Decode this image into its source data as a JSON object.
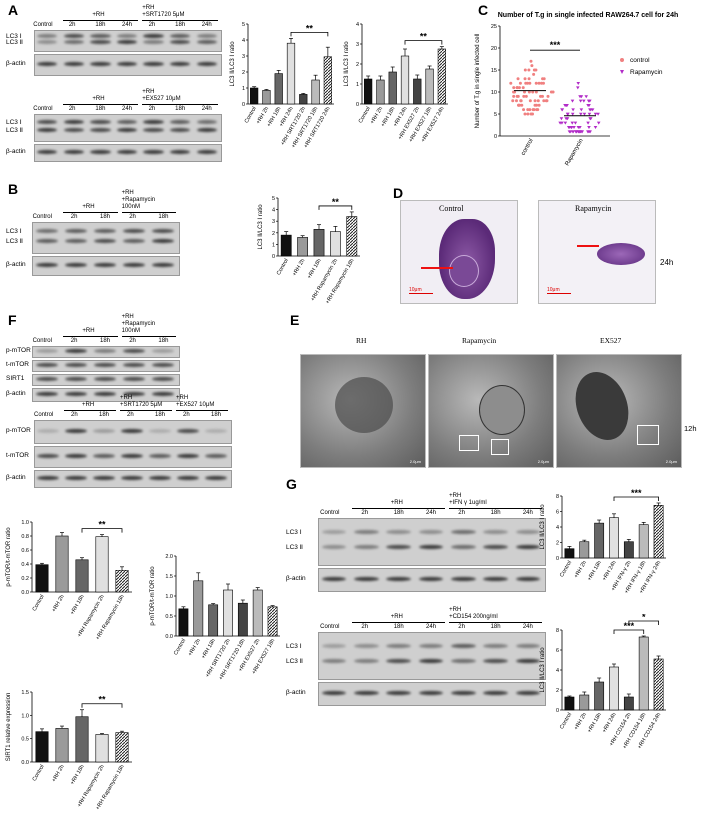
{
  "panels": [
    "A",
    "B",
    "C",
    "D",
    "E",
    "F",
    "G"
  ],
  "blots": {
    "A_top": {
      "cols": [
        "Control",
        "2h",
        "18h",
        "24h",
        "2h",
        "18h",
        "24h"
      ],
      "groups": [
        "+RH",
        "+RH\n+SRT1720 5μM"
      ],
      "rows": [
        "LC3 Ⅰ",
        "LC3 Ⅱ",
        "β-actin"
      ]
    },
    "A_bottom": {
      "cols": [
        "Control",
        "2h",
        "18h",
        "24h",
        "2h",
        "18h",
        "24h"
      ],
      "groups": [
        "+RH",
        "+RH\n+EX527 10μM"
      ],
      "rows": [
        "LC3 Ⅰ",
        "LC3 Ⅱ",
        "β-actin"
      ]
    },
    "B": {
      "cols": [
        "Control",
        "2h",
        "18h",
        "2h",
        "18h"
      ],
      "groups": [
        "+RH",
        "+RH\n+Rapamycin\n100nM"
      ],
      "rows": [
        "LC3 Ⅰ",
        "LC3 Ⅱ",
        "β-actin"
      ]
    },
    "F_top": {
      "cols": [
        "Control",
        "2h",
        "18h",
        "2h",
        "18h"
      ],
      "groups": [
        "+RH",
        "+RH\n+Rapamycin\n100nM"
      ],
      "rows": [
        "p-mTOR",
        "t-mTOR",
        "SIRT1",
        "β-actin"
      ]
    },
    "F_bottom": {
      "cols": [
        "Control",
        "2h",
        "18h",
        "2h",
        "18h",
        "2h",
        "18h"
      ],
      "groups": [
        "+RH",
        "+RH\n+SRT1720 5μM",
        "+RH\n+EX527 10μM"
      ],
      "rows": [
        "p-mTOR",
        "t-mTOR",
        "β-actin"
      ]
    },
    "G_top": {
      "cols": [
        "Control",
        "2h",
        "18h",
        "24h",
        "2h",
        "18h",
        "24h"
      ],
      "groups": [
        "+RH",
        "+RH\n+IFN γ 1ug/ml"
      ],
      "rows": [
        "LC3 Ⅰ",
        "LC3 Ⅱ",
        "β-actin"
      ]
    },
    "G_bottom": {
      "cols": [
        "Control",
        "2h",
        "18h",
        "24h",
        "2h",
        "18h",
        "24h"
      ],
      "groups": [
        "+RH",
        "+RH\n+CD154 200ng/ml"
      ],
      "rows": [
        "LC3 Ⅰ",
        "LC3 Ⅱ",
        "β-actin"
      ]
    }
  },
  "micrographs": {
    "D": {
      "labels": [
        "Control",
        "Rapamycin"
      ],
      "side": "24h",
      "scale": "10μm"
    },
    "E": {
      "labels": [
        "RH",
        "Rapamycin",
        "EX527"
      ],
      "side": "12h",
      "scale": "2.0μm"
    }
  },
  "chart_data": [
    {
      "id": "A1",
      "type": "bar",
      "ylabel": "LC3 Ⅱ/LC3 Ⅰ ratio",
      "ylim": [
        0,
        5
      ],
      "yticks": [
        0,
        1,
        2,
        3,
        4,
        5
      ],
      "categories": [
        "Control",
        "+RH 2h",
        "+RH 18h",
        "+RH 24h",
        "+RH SRT1720 2h",
        "+RH SRT1720 18h",
        "+RH SRT1720 24h"
      ],
      "values": [
        1.0,
        0.85,
        1.9,
        3.8,
        0.6,
        1.5,
        2.95
      ],
      "errors": [
        0.08,
        0.06,
        0.2,
        0.3,
        0.06,
        0.3,
        0.6
      ],
      "fills": [
        "#111111",
        "#9a9a9a",
        "#666666",
        "#e0e0e0",
        "#444444",
        "#bbbbbb",
        "hatch"
      ],
      "sig": [
        {
          "from": 3,
          "to": 6,
          "label": "**"
        }
      ]
    },
    {
      "id": "A2",
      "type": "bar",
      "ylabel": "LC3 Ⅱ/LC3 Ⅰ ratio",
      "ylim": [
        0,
        4
      ],
      "yticks": [
        0,
        1,
        2,
        3,
        4
      ],
      "categories": [
        "Control",
        "+RH 2h",
        "+RH 18h",
        "+RH 24h",
        "+RH EX527 2h",
        "+RH EX527 18h",
        "+RH EX527 24h"
      ],
      "values": [
        1.25,
        1.2,
        1.6,
        2.4,
        1.25,
        1.75,
        2.75
      ],
      "errors": [
        0.15,
        0.2,
        0.25,
        0.35,
        0.2,
        0.15,
        0.12
      ],
      "fills": [
        "#111111",
        "#9a9a9a",
        "#666666",
        "#e0e0e0",
        "#444444",
        "#bbbbbb",
        "hatch"
      ],
      "sig": [
        {
          "from": 3,
          "to": 6,
          "label": "**"
        }
      ]
    },
    {
      "id": "C",
      "type": "scatter",
      "title": "Number of T.g in single infected RAW264.7 cell for 24h",
      "ylabel": "Number of T.g in single infected cell",
      "ylim": [
        0,
        25
      ],
      "yticks": [
        0,
        5,
        10,
        15,
        20,
        25
      ],
      "categories": [
        "control",
        "Rapamycin"
      ],
      "means": [
        10.3,
        4.6
      ],
      "ranges": [
        [
          5,
          19
        ],
        [
          1,
          14
        ]
      ],
      "series": [
        {
          "name": "control",
          "color": "#f08080",
          "marker": "circle"
        },
        {
          "name": "Rapamycin",
          "color": "#b22cc8",
          "marker": "triangle"
        }
      ],
      "sig": [
        {
          "from": 0,
          "to": 1,
          "label": "***"
        }
      ]
    },
    {
      "id": "B",
      "type": "bar",
      "ylabel": "LC3 Ⅱ/LC3 Ⅰ ratio",
      "ylim": [
        0,
        5
      ],
      "yticks": [
        0,
        1,
        2,
        3,
        4,
        5
      ],
      "categories": [
        "Control",
        "+RH 2h",
        "+RH 18h",
        "+RH Rapamycin 2h",
        "+RH Rapamycin 18h"
      ],
      "values": [
        1.8,
        1.6,
        2.3,
        2.1,
        3.4
      ],
      "errors": [
        0.3,
        0.15,
        0.4,
        0.45,
        0.4
      ],
      "fills": [
        "#111111",
        "#9a9a9a",
        "#666666",
        "#e0e0e0",
        "hatch"
      ],
      "sig": [
        {
          "from": 2,
          "to": 4,
          "label": "**"
        }
      ]
    },
    {
      "id": "F1",
      "type": "bar",
      "ylabel": "p-mTOR/t-mTOR ratio",
      "ylim": [
        0,
        1.0
      ],
      "yticks": [
        "0.0",
        "0.2",
        "0.4",
        "0.6",
        "0.8",
        "1.0"
      ],
      "categories": [
        "Control",
        "+RH 2h",
        "+RH 18h",
        "+RH Rapamycin 2h",
        "+RH Rapamycin 18h"
      ],
      "values": [
        0.39,
        0.8,
        0.46,
        0.79,
        0.31
      ],
      "errors": [
        0.02,
        0.05,
        0.03,
        0.03,
        0.05
      ],
      "fills": [
        "#111111",
        "#9a9a9a",
        "#666666",
        "#e0e0e0",
        "hatch"
      ],
      "sig": [
        {
          "from": 2,
          "to": 4,
          "label": "**"
        }
      ]
    },
    {
      "id": "F2",
      "type": "bar",
      "ylabel": "p-mTOR/t-mTOR ratio",
      "ylim": [
        0,
        2.0
      ],
      "yticks": [
        "0.0",
        "0.5",
        "1.0",
        "1.5",
        "2.0"
      ],
      "categories": [
        "Control",
        "+RH 2h",
        "+RH 18h",
        "+RH SRT1720 2h",
        "+RH SRT1720 18h",
        "+RH EX527 2h",
        "+RH EX527 18h"
      ],
      "values": [
        0.68,
        1.38,
        0.78,
        1.15,
        0.82,
        1.15,
        0.73
      ],
      "errors": [
        0.05,
        0.2,
        0.03,
        0.15,
        0.08,
        0.06,
        0.03
      ],
      "fills": [
        "#111111",
        "#9a9a9a",
        "#666666",
        "#e0e0e0",
        "#444444",
        "#bbbbbb",
        "hatch"
      ],
      "sig": []
    },
    {
      "id": "F3",
      "type": "bar",
      "ylabel": "SIRT1 relative expression",
      "ylim": [
        0,
        1.5
      ],
      "yticks": [
        "0.0",
        "0.5",
        "1.0",
        "1.5"
      ],
      "categories": [
        "Control",
        "+RH 2h",
        "+RH 18h",
        "+RH Rapamycin 2h",
        "+RH Rapamycin 18h"
      ],
      "values": [
        0.65,
        0.72,
        0.97,
        0.59,
        0.63
      ],
      "errors": [
        0.06,
        0.05,
        0.15,
        0.02,
        0.03
      ],
      "fills": [
        "#111111",
        "#9a9a9a",
        "#666666",
        "#e0e0e0",
        "hatch"
      ],
      "sig": [
        {
          "from": 2,
          "to": 4,
          "label": "**"
        }
      ]
    },
    {
      "id": "G1",
      "type": "bar",
      "ylabel": "LC3 Ⅱ/LC3 Ⅰ ratio",
      "ylim": [
        0,
        8
      ],
      "yticks": [
        0,
        2,
        4,
        6,
        8
      ],
      "categories": [
        "Control",
        "+RH 2h",
        "+RH 18h",
        "+RH 24h",
        "+RH IFN-γ 2h",
        "+RH IFN-γ 18h",
        "+RH IFN-γ 24h"
      ],
      "values": [
        1.2,
        2.1,
        4.5,
        5.2,
        2.1,
        4.3,
        6.8
      ],
      "errors": [
        0.3,
        0.2,
        0.4,
        0.5,
        0.3,
        0.3,
        0.3
      ],
      "fills": [
        "#111111",
        "#9a9a9a",
        "#666666",
        "#e0e0e0",
        "#444444",
        "#bbbbbb",
        "hatch"
      ],
      "sig": [
        {
          "from": 3,
          "to": 6,
          "label": "***"
        }
      ]
    },
    {
      "id": "G2",
      "type": "bar",
      "ylabel": "LC3 Ⅱ/LC3 Ⅰ ratio",
      "ylim": [
        0,
        8
      ],
      "yticks": [
        0,
        2,
        4,
        6,
        8
      ],
      "categories": [
        "Control",
        "+RH 2h",
        "+RH 18h",
        "+RH 24h",
        "+RH CD154 2h",
        "+RH CD154 18h",
        "+RH CD154 24h"
      ],
      "values": [
        1.3,
        1.5,
        2.8,
        4.3,
        1.3,
        7.3,
        5.1
      ],
      "errors": [
        0.1,
        0.3,
        0.4,
        0.3,
        0.3,
        0.1,
        0.3
      ],
      "fills": [
        "#111111",
        "#9a9a9a",
        "#666666",
        "#e0e0e0",
        "#444444",
        "#bbbbbb",
        "hatch"
      ],
      "sig": [
        {
          "from": 3,
          "to": 5,
          "label": "***"
        },
        {
          "from": 4,
          "to": 6,
          "label": "*"
        }
      ]
    }
  ]
}
